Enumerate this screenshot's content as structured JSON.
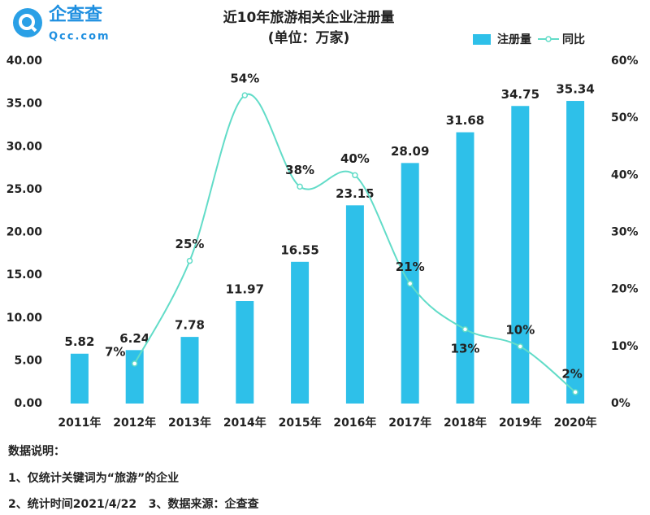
{
  "logo": {
    "name": "企查查",
    "domain": "Qcc.com"
  },
  "chart_data": {
    "type": "bar_line",
    "title": "近10年旅游相关企业注册量",
    "subtitle": "(单位：万家)",
    "categories": [
      "2011年",
      "2012年",
      "2013年",
      "2014年",
      "2015年",
      "2016年",
      "2017年",
      "2018年",
      "2019年",
      "2020年"
    ],
    "series": [
      {
        "name": "注册量",
        "color": "#2ec0e9",
        "type": "bar",
        "values": [
          5.82,
          6.24,
          7.78,
          11.97,
          16.55,
          23.15,
          28.09,
          31.68,
          34.75,
          35.34
        ]
      },
      {
        "name": "同比",
        "color": "#62dcc8",
        "type": "line",
        "axis": "y2",
        "values": [
          null,
          7,
          25,
          54,
          38,
          40,
          21,
          13,
          10,
          2
        ],
        "value_labels": [
          null,
          "7%",
          "25%",
          "54%",
          "38%",
          "40%",
          "21%",
          "13%",
          "10%",
          "2%"
        ]
      }
    ],
    "ylim": [
      0,
      40
    ],
    "yticks": [
      {
        "value": 0,
        "label": "0.00"
      },
      {
        "value": 5,
        "label": "5.00"
      },
      {
        "value": 10,
        "label": "10.00"
      },
      {
        "value": 15,
        "label": "15.00"
      },
      {
        "value": 20,
        "label": "20.00"
      },
      {
        "value": 25,
        "label": "25.00"
      },
      {
        "value": 30,
        "label": "30.00"
      },
      {
        "value": 35,
        "label": "35.00"
      },
      {
        "value": 40,
        "label": "40.00"
      }
    ],
    "y2lim": [
      0,
      60
    ],
    "y2ticks": [
      {
        "value": 0,
        "label": "0%"
      },
      {
        "value": 10,
        "label": "10%"
      },
      {
        "value": 20,
        "label": "20%"
      },
      {
        "value": 30,
        "label": "30%"
      },
      {
        "value": 40,
        "label": "40%"
      },
      {
        "value": 50,
        "label": "50%"
      },
      {
        "value": 60,
        "label": "60%"
      }
    ],
    "legend": "top-right"
  },
  "notes": {
    "heading": "数据说明：",
    "lines": [
      "1、仅统计关键词为“旅游”的企业",
      "2、统计时间2021/4/22   3、数据来源：企查查"
    ]
  }
}
